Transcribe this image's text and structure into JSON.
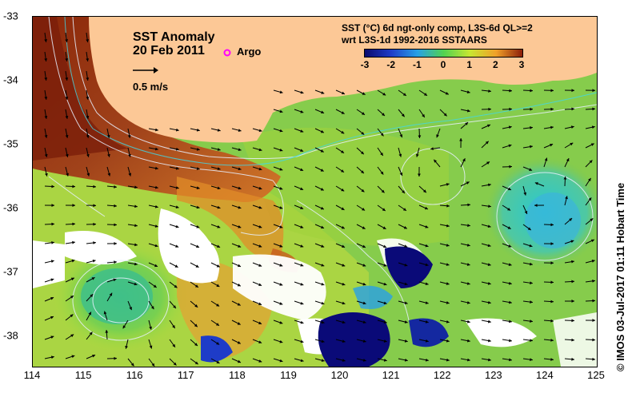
{
  "title": "SST Anomaly",
  "date": "20 Feb 2011",
  "legend_argo": "Argo",
  "scale_label": "0.5 m/s",
  "product_line1": "SST (°C) 6d ngt-only comp, L3S-6d QL>=2",
  "product_line2": "wrt L3S-1d 1992-2016 SSTAARS",
  "colorbar": {
    "ticks": [
      "-3",
      "-2",
      "-1",
      "0",
      "1",
      "2",
      "3"
    ],
    "colors": [
      "#0a0a6e",
      "#1e3cc8",
      "#28a0e6",
      "#50d250",
      "#c8e632",
      "#f0a028",
      "#8c1e0a"
    ]
  },
  "x_ticks": [
    "114",
    "115",
    "116",
    "117",
    "118",
    "119",
    "120",
    "121",
    "122",
    "123",
    "124",
    "125"
  ],
  "y_ticks": [
    "-33",
    "-34",
    "-35",
    "-36",
    "-37",
    "-38"
  ],
  "credit": "© IMOS 03-Jul-2017 01:11 Hobart Time",
  "colors": {
    "land": "#fcc896",
    "argo": "#ff00ff"
  }
}
